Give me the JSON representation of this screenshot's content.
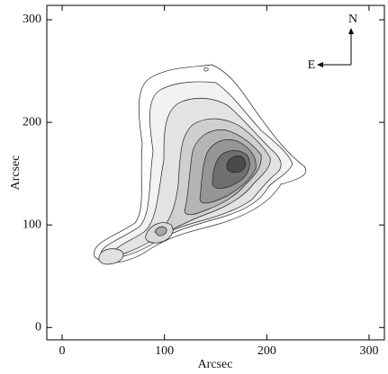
{
  "chart_data": {
    "type": "contour",
    "x_label": "Arcsec",
    "y_label": "Arcsec",
    "xlim": [
      -15,
      315
    ],
    "ylim": [
      -12,
      314
    ],
    "xticks": [
      0,
      100,
      200,
      300
    ],
    "yticks": [
      0,
      100,
      200,
      300
    ],
    "annotations": [
      "N",
      "E"
    ]
  }
}
